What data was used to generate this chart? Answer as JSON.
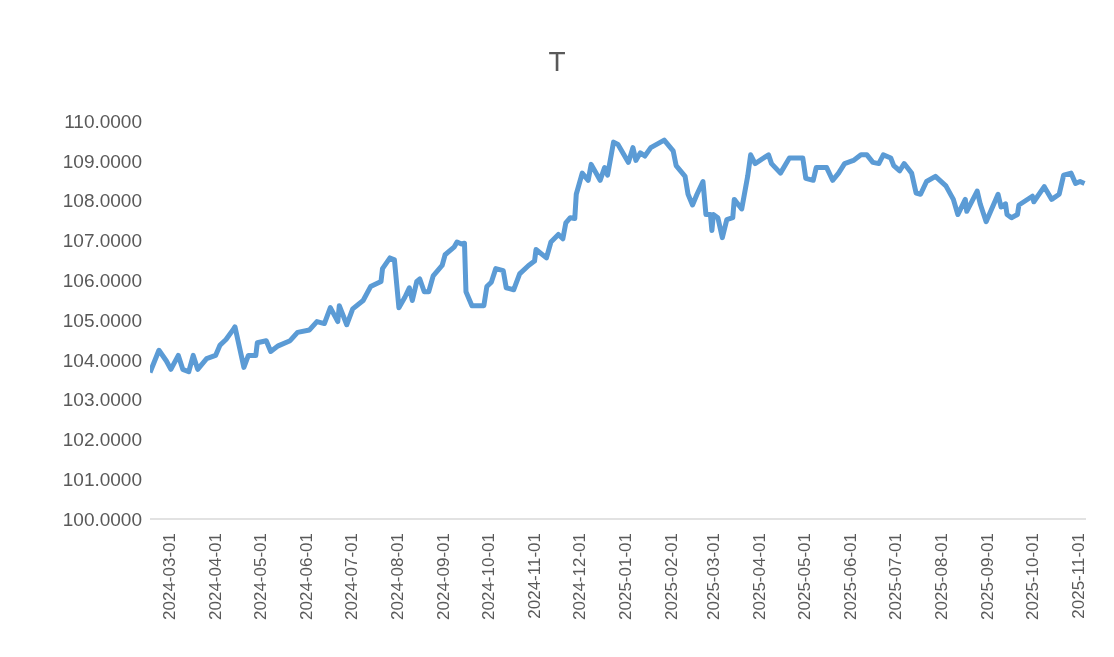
{
  "chart_data": {
    "type": "line",
    "title": "T",
    "x": [
      "2024-02-17",
      "2024-02-23",
      "2024-02-28",
      "2024-03-02",
      "2024-03-07",
      "2024-03-10",
      "2024-03-14",
      "2024-03-17",
      "2024-03-20",
      "2024-03-26",
      "2024-04-01",
      "2024-04-04",
      "2024-04-08",
      "2024-04-13",
      "2024-04-14",
      "2024-04-20",
      "2024-04-23",
      "2024-04-28",
      "2024-04-29",
      "2024-05-05",
      "2024-05-08",
      "2024-05-13",
      "2024-05-21",
      "2024-05-26",
      "2024-06-03",
      "2024-06-08",
      "2024-06-13",
      "2024-06-17",
      "2024-06-22",
      "2024-06-23",
      "2024-06-28",
      "2024-07-02",
      "2024-07-09",
      "2024-07-14",
      "2024-07-21",
      "2024-07-22",
      "2024-07-27",
      "2024-07-30",
      "2024-08-02",
      "2024-08-06",
      "2024-08-09",
      "2024-08-11",
      "2024-08-14",
      "2024-08-16",
      "2024-08-19",
      "2024-08-22",
      "2024-08-25",
      "2024-08-31",
      "2024-09-02",
      "2024-09-08",
      "2024-09-10",
      "2024-09-13",
      "2024-09-15",
      "2024-09-16",
      "2024-09-20",
      "2024-09-28",
      "2024-09-30",
      "2024-10-03",
      "2024-10-06",
      "2024-10-11",
      "2024-10-13",
      "2024-10-18",
      "2024-10-22",
      "2024-10-28",
      "2024-11-01",
      "2024-11-02",
      "2024-11-09",
      "2024-11-12",
      "2024-11-17",
      "2024-11-20",
      "2024-11-22",
      "2024-11-25",
      "2024-11-28",
      "2024-11-29",
      "2024-12-03",
      "2024-12-07",
      "2024-12-09",
      "2024-12-15",
      "2024-12-18",
      "2024-12-20",
      "2024-12-24",
      "2024-12-27",
      "2025-01-03",
      "2025-01-06",
      "2025-01-08",
      "2025-01-11",
      "2025-01-14",
      "2025-01-18",
      "2025-01-27",
      "2025-02-02",
      "2025-02-04",
      "2025-02-10",
      "2025-02-12",
      "2025-02-15",
      "2025-02-18",
      "2025-02-22",
      "2025-02-24",
      "2025-02-27",
      "2025-02-28",
      "2025-03-01",
      "2025-03-04",
      "2025-03-07",
      "2025-03-10",
      "2025-03-14",
      "2025-03-15",
      "2025-03-20",
      "2025-03-24",
      "2025-03-26",
      "2025-03-29",
      "2025-04-07",
      "2025-04-09",
      "2025-04-15",
      "2025-04-21",
      "2025-04-30",
      "2025-05-02",
      "2025-05-07",
      "2025-05-09",
      "2025-05-16",
      "2025-05-20",
      "2025-05-24",
      "2025-05-28",
      "2025-06-03",
      "2025-06-08",
      "2025-06-12",
      "2025-06-16",
      "2025-06-20",
      "2025-06-23",
      "2025-06-28",
      "2025-06-30",
      "2025-07-04",
      "2025-07-07",
      "2025-07-12",
      "2025-07-15",
      "2025-07-18",
      "2025-07-22",
      "2025-07-28",
      "2025-08-04",
      "2025-08-09",
      "2025-08-12",
      "2025-08-17",
      "2025-08-18",
      "2025-08-25",
      "2025-08-27",
      "2025-08-31",
      "2025-09-08",
      "2025-09-10",
      "2025-09-13",
      "2025-09-14",
      "2025-09-17",
      "2025-09-21",
      "2025-09-22",
      "2025-10-01",
      "2025-10-02",
      "2025-10-09",
      "2025-10-14",
      "2025-10-19",
      "2025-10-22",
      "2025-10-27",
      "2025-10-30",
      "2025-11-02",
      "2025-11-05"
    ],
    "series": [
      {
        "color": "#5b9bd5",
        "values": [
          103.68,
          104.24,
          103.97,
          103.76,
          104.11,
          103.76,
          103.7,
          104.11,
          103.76,
          104.03,
          104.11,
          104.37,
          104.51,
          104.77,
          104.83,
          103.81,
          104.11,
          104.11,
          104.43,
          104.48,
          104.21,
          104.35,
          104.48,
          104.69,
          104.75,
          104.96,
          104.91,
          105.31,
          104.96,
          105.36,
          104.88,
          105.28,
          105.49,
          105.84,
          105.97,
          106.29,
          106.56,
          106.51,
          105.31,
          105.57,
          105.81,
          105.49,
          105.97,
          106.03,
          105.71,
          105.71,
          106.11,
          106.37,
          106.64,
          106.83,
          106.96,
          106.91,
          106.93,
          105.71,
          105.36,
          105.36,
          105.84,
          105.95,
          106.29,
          106.24,
          105.81,
          105.76,
          106.16,
          106.37,
          106.48,
          106.77,
          106.56,
          106.96,
          107.15,
          107.04,
          107.44,
          107.57,
          107.55,
          108.16,
          108.69,
          108.51,
          108.91,
          108.51,
          108.83,
          108.64,
          109.47,
          109.41,
          108.96,
          109.33,
          109.01,
          109.2,
          109.12,
          109.33,
          109.52,
          109.25,
          108.88,
          108.61,
          108.16,
          107.89,
          108.16,
          108.48,
          107.65,
          107.65,
          107.25,
          107.65,
          107.57,
          107.07,
          107.52,
          107.57,
          108.03,
          107.79,
          108.61,
          109.15,
          108.93,
          109.15,
          108.93,
          108.69,
          109.07,
          109.07,
          108.56,
          108.51,
          108.83,
          108.83,
          108.51,
          108.69,
          108.93,
          109.01,
          109.15,
          109.15,
          108.96,
          108.93,
          109.15,
          109.07,
          108.88,
          108.75,
          108.93,
          108.69,
          108.19,
          108.16,
          108.48,
          108.61,
          108.37,
          108.03,
          107.65,
          108.03,
          107.73,
          108.24,
          107.92,
          107.47,
          108.16,
          107.84,
          107.92,
          107.65,
          107.57,
          107.65,
          107.89,
          108.11,
          107.97,
          108.35,
          108.03,
          108.16,
          108.64,
          108.69,
          108.43,
          108.48,
          108.43
        ]
      }
    ],
    "xlim": [
      "2024-02-17",
      "2025-11-06"
    ],
    "xticks": [
      "2024-03-01",
      "2024-04-01",
      "2024-05-01",
      "2024-06-01",
      "2024-07-01",
      "2024-08-01",
      "2024-09-01",
      "2024-10-01",
      "2024-11-01",
      "2024-12-01",
      "2025-01-01",
      "2025-02-01",
      "2025-03-01",
      "2025-04-01",
      "2025-05-01",
      "2025-06-01",
      "2025-07-01",
      "2025-08-01",
      "2025-09-01",
      "2025-10-01",
      "2025-11-01"
    ],
    "ylim": [
      100,
      110
    ],
    "yticks": [
      {
        "value": 100,
        "label": "100.0000"
      },
      {
        "value": 101,
        "label": "101.0000"
      },
      {
        "value": 102,
        "label": "102.0000"
      },
      {
        "value": 103,
        "label": "103.0000"
      },
      {
        "value": 104,
        "label": "104.0000"
      },
      {
        "value": 105,
        "label": "105.0000"
      },
      {
        "value": 106,
        "label": "106.0000"
      },
      {
        "value": 107,
        "label": "107.0000"
      },
      {
        "value": 108,
        "label": "108.0000"
      },
      {
        "value": 109,
        "label": "109.0000"
      },
      {
        "value": 110,
        "label": "110.0000"
      }
    ],
    "grid": false,
    "legend": false,
    "marker": "none",
    "line_style": "solid"
  }
}
